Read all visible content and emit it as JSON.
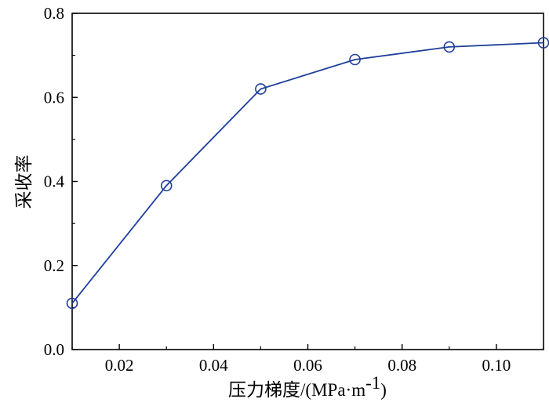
{
  "chart_data": {
    "type": "line",
    "title": "",
    "xlabel": "压力梯度/(MPa·m-1)",
    "xlabel_cn": "压力梯度",
    "xlabel_unit_prefix": "/(MPa·m",
    "xlabel_unit_sup": "-1",
    "xlabel_unit_suffix": ")",
    "ylabel": "采收率",
    "xlim": [
      0.01,
      0.11
    ],
    "ylim": [
      0.0,
      0.8
    ],
    "x_ticks": [
      0.02,
      0.04,
      0.06,
      0.08,
      0.1
    ],
    "x_tick_labels": [
      "0.02",
      "0.04",
      "0.06",
      "0.08",
      "0.10"
    ],
    "y_ticks": [
      0.0,
      0.2,
      0.4,
      0.6,
      0.8
    ],
    "y_tick_labels": [
      "0.0",
      "0.2",
      "0.4",
      "0.6",
      "0.8"
    ],
    "grid": false,
    "series": [
      {
        "x": [
          0.01,
          0.03,
          0.05,
          0.07,
          0.09,
          0.11
        ],
        "y": [
          0.11,
          0.39,
          0.62,
          0.69,
          0.72,
          0.73
        ],
        "color": "#1f3f9a",
        "marker": "open-circle"
      }
    ]
  }
}
